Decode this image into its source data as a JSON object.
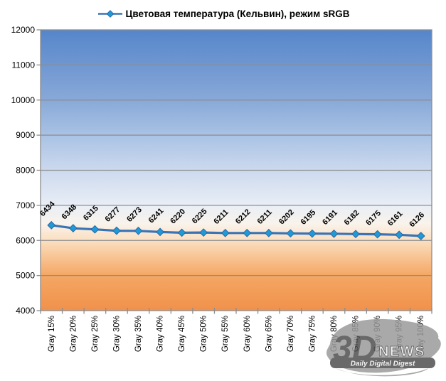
{
  "chart_data": {
    "type": "line",
    "title": "Цветовая температура (Кельвин), режим sRGB",
    "xlabel": "",
    "ylabel": "",
    "categories": [
      "Gray 15%",
      "Gray 20%",
      "Gray 25%",
      "Gray 30%",
      "Gray 35%",
      "Gray 40%",
      "Gray 45%",
      "Gray 50%",
      "Gray 55%",
      "Gray 60%",
      "Gray 65%",
      "Gray 70%",
      "Gray 75%",
      "Gray 80%",
      "Gray 85%",
      "Gray 90%",
      "Gray 95%",
      "Gray 100%"
    ],
    "series": [
      {
        "name": "Цветовая температура (Кельвин), режим sRGB",
        "values": [
          6434,
          6348,
          6315,
          6277,
          6273,
          6241,
          6220,
          6225,
          6211,
          6212,
          6211,
          6202,
          6195,
          6191,
          6182,
          6175,
          6161,
          6126
        ]
      }
    ],
    "ylim": [
      4000,
      12000
    ],
    "ytick_step": 1000,
    "grid": true,
    "legend_position": "top",
    "colors": {
      "line": "#3b74b5",
      "marker_fill": "#1f9ad6",
      "marker_stroke": "#2a66a5",
      "grid": "#8d8d8d",
      "axis": "#8d8d8d",
      "text": "#000000"
    },
    "plot_gradient": [
      [
        "0%",
        "#5586ca"
      ],
      [
        "12.5%",
        "#6f97d1"
      ],
      [
        "25%",
        "#88a9d8"
      ],
      [
        "37.5%",
        "#a9c2e4"
      ],
      [
        "50%",
        "#ccd9ee"
      ],
      [
        "62.5%",
        "#e9eef6"
      ],
      [
        "69%",
        "#f9f3ec"
      ],
      [
        "75%",
        "#fbdfc0"
      ],
      [
        "87.5%",
        "#f4a763"
      ],
      [
        "100%",
        "#f0914c"
      ]
    ]
  },
  "watermark": {
    "brand": "3D",
    "brand_suffix": "NEWS",
    "tagline": "Daily Digital Digest",
    "brush_color": "#9b9b9b",
    "dark_color": "#4f4f4f"
  }
}
